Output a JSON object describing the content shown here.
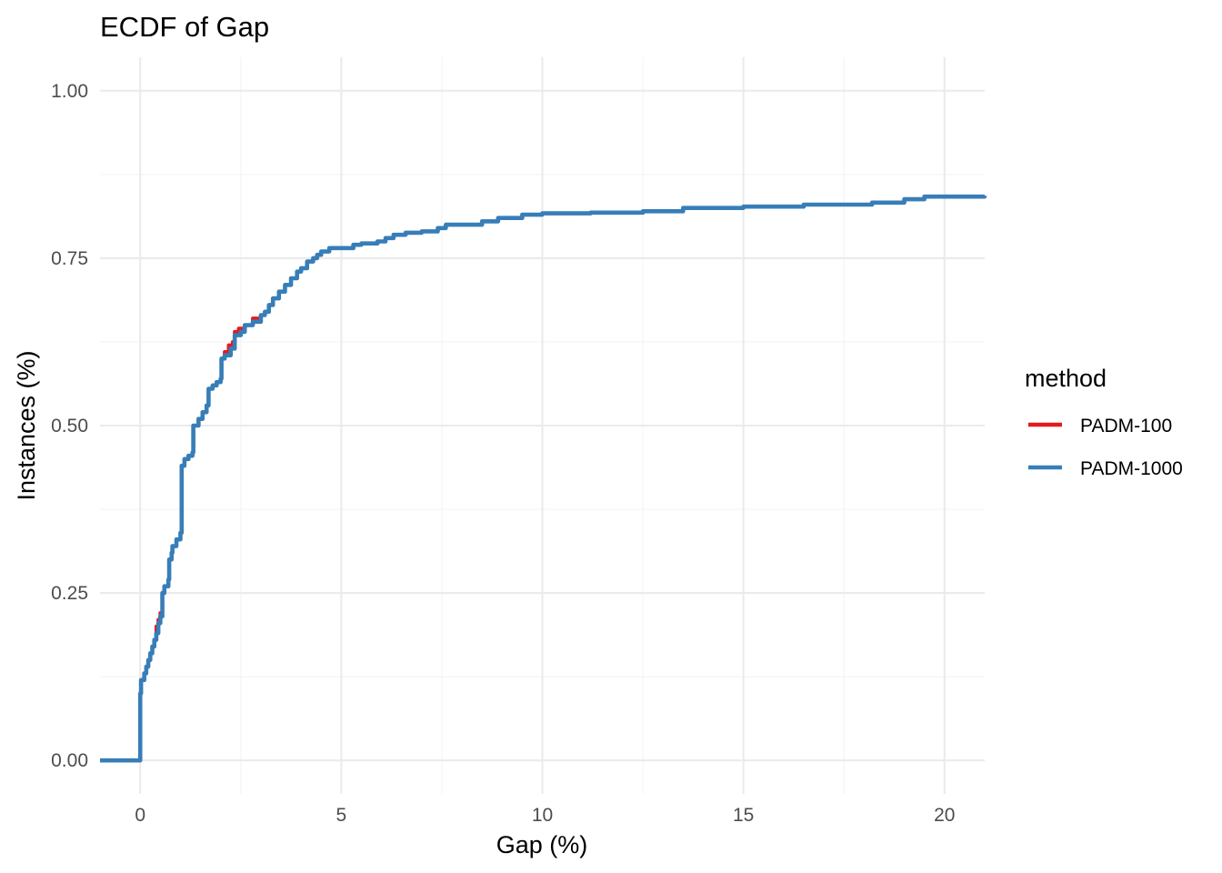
{
  "chart_data": {
    "type": "line",
    "title": "ECDF of Gap",
    "xlabel": "Gap (%)",
    "ylabel": "Instances (%)",
    "xlim": [
      -1,
      21
    ],
    "ylim": [
      -0.05,
      1.05
    ],
    "x_ticks": [
      0,
      5,
      10,
      15,
      20
    ],
    "x_tick_labels": [
      "0",
      "5",
      "10",
      "15",
      "20"
    ],
    "y_ticks": [
      0,
      0.25,
      0.5,
      0.75,
      1.0
    ],
    "y_tick_labels": [
      "0.00",
      "0.25",
      "0.50",
      "0.75",
      "1.00"
    ],
    "grid": true,
    "legend_title": "method",
    "legend_position": "right",
    "series": [
      {
        "name": "PADM-100",
        "color": "#e41a1c",
        "points": [
          [
            -1,
            0
          ],
          [
            0,
            0
          ],
          [
            0,
            0.1
          ],
          [
            0.02,
            0.12
          ],
          [
            0.1,
            0.13
          ],
          [
            0.15,
            0.14
          ],
          [
            0.2,
            0.15
          ],
          [
            0.25,
            0.16
          ],
          [
            0.3,
            0.17
          ],
          [
            0.35,
            0.18
          ],
          [
            0.4,
            0.2
          ],
          [
            0.45,
            0.21
          ],
          [
            0.5,
            0.22
          ],
          [
            0.55,
            0.25
          ],
          [
            0.6,
            0.26
          ],
          [
            0.7,
            0.27
          ],
          [
            0.72,
            0.3
          ],
          [
            0.78,
            0.31
          ],
          [
            0.8,
            0.32
          ],
          [
            0.9,
            0.33
          ],
          [
            1.0,
            0.34
          ],
          [
            1.03,
            0.44
          ],
          [
            1.1,
            0.45
          ],
          [
            1.2,
            0.455
          ],
          [
            1.3,
            0.46
          ],
          [
            1.32,
            0.5
          ],
          [
            1.45,
            0.51
          ],
          [
            1.55,
            0.52
          ],
          [
            1.65,
            0.53
          ],
          [
            1.7,
            0.555
          ],
          [
            1.8,
            0.56
          ],
          [
            1.9,
            0.565
          ],
          [
            2.0,
            0.57
          ],
          [
            2.02,
            0.6
          ],
          [
            2.1,
            0.61
          ],
          [
            2.2,
            0.62
          ],
          [
            2.3,
            0.625
          ],
          [
            2.35,
            0.64
          ],
          [
            2.45,
            0.645
          ],
          [
            2.6,
            0.65
          ],
          [
            2.8,
            0.66
          ],
          [
            3.0,
            0.665
          ],
          [
            3.1,
            0.67
          ],
          [
            3.2,
            0.68
          ],
          [
            3.3,
            0.69
          ],
          [
            3.45,
            0.7
          ],
          [
            3.6,
            0.71
          ],
          [
            3.75,
            0.72
          ],
          [
            3.9,
            0.73
          ],
          [
            4.0,
            0.735
          ],
          [
            4.15,
            0.745
          ],
          [
            4.3,
            0.75
          ],
          [
            4.4,
            0.755
          ],
          [
            4.5,
            0.76
          ],
          [
            4.7,
            0.765
          ],
          [
            5.3,
            0.77
          ],
          [
            5.5,
            0.772
          ],
          [
            5.9,
            0.775
          ],
          [
            6.1,
            0.78
          ],
          [
            6.3,
            0.785
          ],
          [
            6.6,
            0.788
          ],
          [
            7.0,
            0.79
          ],
          [
            7.4,
            0.795
          ],
          [
            7.6,
            0.8
          ],
          [
            8.5,
            0.805
          ],
          [
            8.9,
            0.81
          ],
          [
            9.5,
            0.815
          ],
          [
            10.0,
            0.817
          ],
          [
            11.2,
            0.818
          ],
          [
            12.5,
            0.82
          ],
          [
            13.5,
            0.825
          ],
          [
            15.0,
            0.827
          ],
          [
            16.5,
            0.83
          ],
          [
            18.2,
            0.833
          ],
          [
            19.0,
            0.838
          ],
          [
            19.5,
            0.842
          ],
          [
            21,
            0.843
          ]
        ]
      },
      {
        "name": "PADM-1000",
        "color": "#377eb8",
        "points": [
          [
            -1,
            0
          ],
          [
            0,
            0
          ],
          [
            0,
            0.1
          ],
          [
            0.02,
            0.12
          ],
          [
            0.1,
            0.13
          ],
          [
            0.15,
            0.14
          ],
          [
            0.2,
            0.15
          ],
          [
            0.25,
            0.16
          ],
          [
            0.3,
            0.17
          ],
          [
            0.35,
            0.18
          ],
          [
            0.4,
            0.19
          ],
          [
            0.45,
            0.205
          ],
          [
            0.5,
            0.215
          ],
          [
            0.55,
            0.25
          ],
          [
            0.6,
            0.26
          ],
          [
            0.7,
            0.27
          ],
          [
            0.72,
            0.3
          ],
          [
            0.78,
            0.31
          ],
          [
            0.8,
            0.32
          ],
          [
            0.9,
            0.33
          ],
          [
            1.0,
            0.34
          ],
          [
            1.03,
            0.44
          ],
          [
            1.1,
            0.45
          ],
          [
            1.2,
            0.455
          ],
          [
            1.3,
            0.46
          ],
          [
            1.32,
            0.5
          ],
          [
            1.45,
            0.51
          ],
          [
            1.55,
            0.52
          ],
          [
            1.65,
            0.53
          ],
          [
            1.7,
            0.555
          ],
          [
            1.8,
            0.56
          ],
          [
            1.9,
            0.565
          ],
          [
            2.0,
            0.57
          ],
          [
            2.02,
            0.6
          ],
          [
            2.1,
            0.605
          ],
          [
            2.25,
            0.615
          ],
          [
            2.35,
            0.635
          ],
          [
            2.5,
            0.64
          ],
          [
            2.6,
            0.65
          ],
          [
            2.8,
            0.655
          ],
          [
            3.0,
            0.665
          ],
          [
            3.1,
            0.67
          ],
          [
            3.2,
            0.68
          ],
          [
            3.3,
            0.69
          ],
          [
            3.45,
            0.7
          ],
          [
            3.6,
            0.71
          ],
          [
            3.75,
            0.72
          ],
          [
            3.9,
            0.73
          ],
          [
            4.0,
            0.735
          ],
          [
            4.15,
            0.745
          ],
          [
            4.3,
            0.75
          ],
          [
            4.4,
            0.755
          ],
          [
            4.5,
            0.76
          ],
          [
            4.7,
            0.765
          ],
          [
            5.3,
            0.77
          ],
          [
            5.5,
            0.772
          ],
          [
            5.9,
            0.775
          ],
          [
            6.1,
            0.78
          ],
          [
            6.3,
            0.785
          ],
          [
            6.6,
            0.788
          ],
          [
            7.0,
            0.79
          ],
          [
            7.4,
            0.795
          ],
          [
            7.6,
            0.8
          ],
          [
            8.5,
            0.805
          ],
          [
            8.9,
            0.81
          ],
          [
            9.5,
            0.815
          ],
          [
            10.0,
            0.817
          ],
          [
            11.2,
            0.818
          ],
          [
            12.5,
            0.82
          ],
          [
            13.5,
            0.825
          ],
          [
            15.0,
            0.827
          ],
          [
            16.5,
            0.83
          ],
          [
            18.2,
            0.833
          ],
          [
            19.0,
            0.838
          ],
          [
            19.5,
            0.842
          ],
          [
            21,
            0.843
          ]
        ]
      }
    ]
  }
}
